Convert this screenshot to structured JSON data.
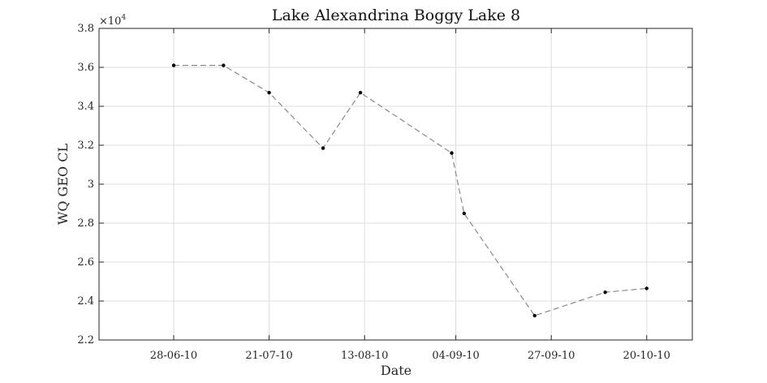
{
  "chart_data": {
    "type": "line",
    "title": "Lake Alexandrina Boggy Lake 8",
    "xlabel": "Date",
    "ylabel": "WQ GEO CL",
    "y_exponent_base": "×10",
    "y_exponent_power": "4",
    "x_tick_labels": [
      "28-06-10",
      "21-07-10",
      "13-08-10",
      "04-09-10",
      "27-09-10",
      "20-10-10"
    ],
    "x_tick_dates": [
      "2010-06-28",
      "2010-07-21",
      "2010-08-13",
      "2010-09-04",
      "2010-09-27",
      "2010-10-20"
    ],
    "xlim": [
      "2010-06-10",
      "2010-10-31"
    ],
    "y_tick_labels": [
      "2.2",
      "2.4",
      "2.6",
      "2.8",
      "3",
      "3.2",
      "3.4",
      "3.6",
      "3.8"
    ],
    "ylim": [
      22000,
      38000
    ],
    "grid": true,
    "line_style": "dashed",
    "line_color": "#808080",
    "marker_color": "#000000",
    "series": [
      {
        "x": [
          "2010-06-28",
          "2010-07-10",
          "2010-07-21",
          "2010-08-03",
          "2010-08-12",
          "2010-09-03",
          "2010-09-06",
          "2010-09-23",
          "2010-10-10",
          "2010-10-20"
        ],
        "y": [
          36100,
          36100,
          34700,
          31850,
          34700,
          31600,
          28500,
          23250,
          24450,
          24650
        ]
      }
    ]
  }
}
